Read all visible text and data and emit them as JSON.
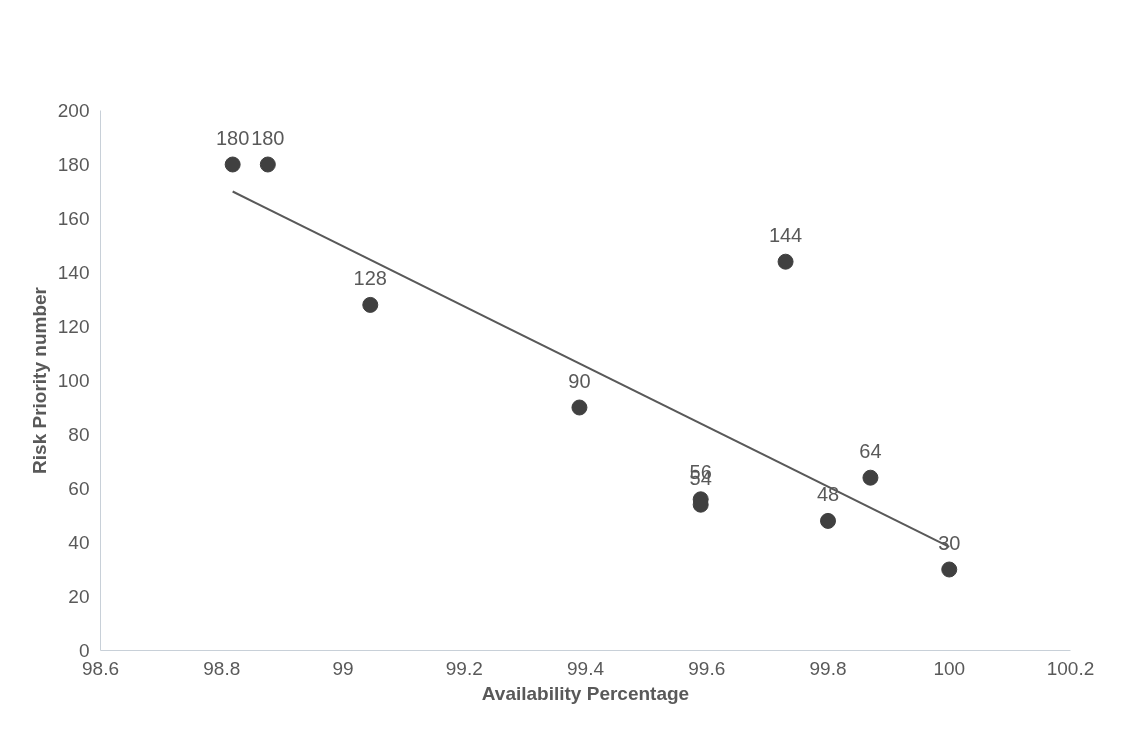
{
  "chart_data": {
    "type": "scatter",
    "xlabel": "Availability Percentage",
    "ylabel": "Risk Priority number",
    "xlim": [
      98.6,
      100.2
    ],
    "xticks": [
      98.6,
      98.8,
      99,
      99.2,
      99.4,
      99.6,
      99.8,
      100,
      100.2
    ],
    "ylim": [
      0,
      200
    ],
    "yticks": [
      0,
      20,
      40,
      60,
      80,
      100,
      120,
      140,
      160,
      180,
      200
    ],
    "grid": false,
    "marker": "circle",
    "series": [
      {
        "color": "#404040",
        "x": [
          98.818,
          98.876,
          99.045,
          99.39,
          99.73,
          99.59,
          99.59,
          99.8,
          99.87,
          100.0
        ],
        "values": [
          180,
          180,
          128,
          90,
          144,
          56,
          54,
          48,
          64,
          30
        ],
        "value_labels": [
          "180",
          "180",
          "128",
          "90",
          "144",
          "56",
          "54",
          "48",
          "64",
          "30"
        ]
      },
      {
        "type": "line",
        "marker": "none",
        "color": "#595959",
        "x": [
          98.818,
          100.0
        ],
        "values": [
          170,
          38.4
        ]
      }
    ]
  }
}
